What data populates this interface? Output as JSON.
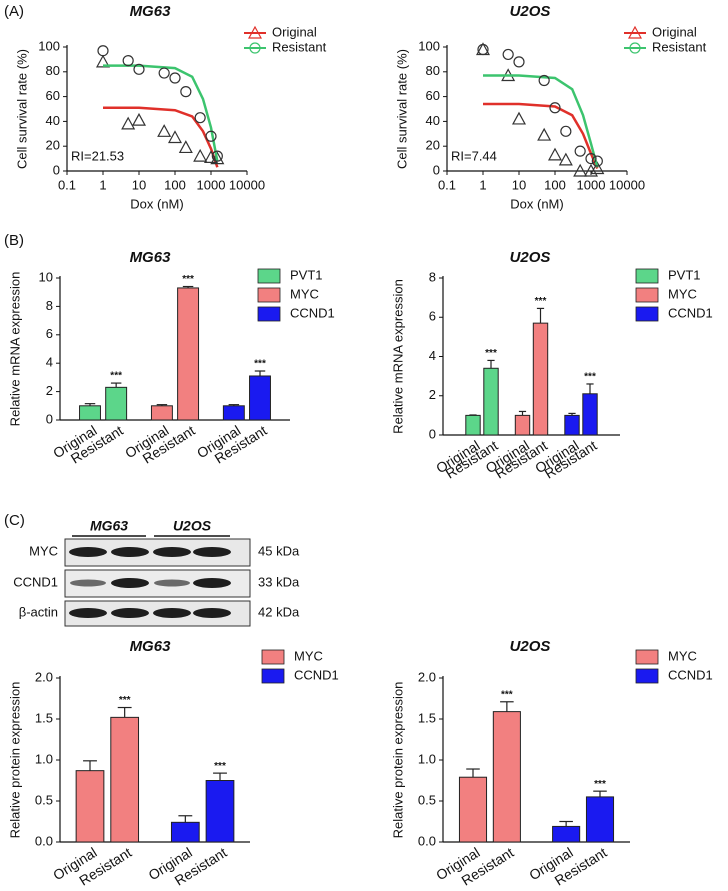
{
  "panel_labels": [
    "(A)",
    "(B)",
    "(C)"
  ],
  "blot": {
    "columns": [
      "MG63",
      "U2OS"
    ],
    "rows": [
      {
        "label": "MYC",
        "size": "45 kDa"
      },
      {
        "label": "CCND1",
        "size": "33 kDa"
      },
      {
        "label": "β-actin",
        "size": "42 kDa"
      }
    ]
  },
  "chart_data": [
    {
      "type": "scatter",
      "title": "MG63",
      "xlabel": "Dox (nM)",
      "ylabel": "Cell survival rate (%)",
      "annotation": "RI=21.53",
      "xscale": "log",
      "xlim": [
        0.1,
        10000
      ],
      "xticks": [
        0.1,
        1,
        10,
        100,
        1000,
        10000
      ],
      "ylim": [
        0,
        100
      ],
      "yticks": [
        0,
        20,
        40,
        60,
        80,
        100
      ],
      "legend": "top-right",
      "point_color": "#333333",
      "series": [
        {
          "name": "Original",
          "color": "#e0302a",
          "marker": "triangle",
          "x": [
            1,
            5,
            10,
            50,
            100,
            200,
            500,
            1000,
            1500
          ],
          "values": [
            88,
            38,
            41,
            32,
            27,
            19,
            12,
            11,
            10
          ],
          "fit": {
            "x": [
              1,
              10,
              100,
              300,
              600,
              1000,
              1500
            ],
            "values": [
              51,
              51,
              49,
              44,
              32,
              18,
              3
            ]
          }
        },
        {
          "name": "Resistant",
          "color": "#3cc46e",
          "marker": "circle",
          "x": [
            1,
            5,
            10,
            50,
            100,
            200,
            500,
            1000,
            1500
          ],
          "values": [
            97,
            89,
            82,
            79,
            75,
            64,
            43,
            28,
            12
          ],
          "fit": {
            "x": [
              1,
              10,
              100,
              300,
              600,
              1000,
              1500
            ],
            "values": [
              85,
              85,
              83,
              76,
              58,
              35,
              8
            ]
          }
        }
      ]
    },
    {
      "type": "scatter",
      "title": "U2OS",
      "xlabel": "Dox (nM)",
      "ylabel": "Cell survival rate (%)",
      "annotation": "RI=7.44",
      "xscale": "log",
      "xlim": [
        0.1,
        10000
      ],
      "xticks": [
        0.1,
        1,
        10,
        100,
        1000,
        10000
      ],
      "ylim": [
        0,
        100
      ],
      "yticks": [
        0,
        20,
        40,
        60,
        80,
        100
      ],
      "legend": "top-right",
      "point_color": "#333333",
      "series": [
        {
          "name": "Original",
          "color": "#e0302a",
          "marker": "triangle",
          "x": [
            1,
            5,
            10,
            50,
            100,
            200,
            500,
            1000,
            1500
          ],
          "values": [
            98,
            77,
            42,
            29,
            13,
            9,
            0,
            0,
            2
          ],
          "fit": {
            "x": [
              1,
              10,
              100,
              300,
              600,
              1000,
              1500
            ],
            "values": [
              54,
              54,
              52,
              45,
              30,
              14,
              2
            ]
          }
        },
        {
          "name": "Resistant",
          "color": "#3cc46e",
          "marker": "circle",
          "x": [
            1,
            5,
            10,
            50,
            100,
            200,
            500,
            1000,
            1500
          ],
          "values": [
            98,
            94,
            88,
            73,
            51,
            32,
            16,
            10,
            8
          ],
          "fit": {
            "x": [
              1,
              10,
              100,
              300,
              600,
              1000,
              1500
            ],
            "values": [
              77,
              77,
              75,
              66,
              45,
              22,
              3
            ]
          }
        }
      ]
    },
    {
      "type": "bar",
      "title": "MG63",
      "ylabel": "Relative mRNA expression",
      "categories": [
        "Original",
        "Resistant",
        "Original",
        "Resistant",
        "Original",
        "Resistant"
      ],
      "ylim": [
        0,
        10
      ],
      "yticks": [
        0,
        2,
        4,
        6,
        8,
        10
      ],
      "legend": "top-right",
      "series": [
        {
          "name": "PVT1",
          "color": "#5cd68a",
          "values": [
            1.0,
            2.3,
            null,
            null,
            null,
            null
          ],
          "errors": [
            0.15,
            0.3,
            null,
            null,
            null,
            null
          ]
        },
        {
          "name": "MYC",
          "color": "#f28080",
          "values": [
            null,
            null,
            1.0,
            9.3,
            null,
            null
          ],
          "errors": [
            null,
            null,
            0.08,
            0.1,
            null,
            null
          ]
        },
        {
          "name": "CCND1",
          "color": "#1a1af0",
          "values": [
            null,
            null,
            null,
            null,
            1.0,
            3.1
          ],
          "errors": [
            null,
            null,
            null,
            null,
            0.08,
            0.35
          ]
        }
      ],
      "significance": [
        null,
        "***",
        null,
        "***",
        null,
        "***"
      ]
    },
    {
      "type": "bar",
      "title": "U2OS",
      "ylabel": "Relative mRNA expression",
      "categories": [
        "Original",
        "Resistant",
        "Original",
        "Resistant",
        "Original",
        "Resistant"
      ],
      "ylim": [
        0,
        8
      ],
      "yticks": [
        0,
        2,
        4,
        6,
        8
      ],
      "legend": "top-right",
      "series": [
        {
          "name": "PVT1",
          "color": "#5cd68a",
          "values": [
            1.0,
            3.4,
            null,
            null,
            null,
            null
          ],
          "errors": [
            0.02,
            0.4,
            null,
            null,
            null,
            null
          ]
        },
        {
          "name": "MYC",
          "color": "#f28080",
          "values": [
            null,
            null,
            1.0,
            5.7,
            null,
            null
          ],
          "errors": [
            null,
            null,
            0.2,
            0.75,
            null,
            null
          ]
        },
        {
          "name": "CCND1",
          "color": "#1a1af0",
          "values": [
            null,
            null,
            null,
            null,
            1.0,
            2.1
          ],
          "errors": [
            null,
            null,
            null,
            null,
            0.1,
            0.5
          ]
        }
      ],
      "significance": [
        null,
        "***",
        null,
        "***",
        null,
        "***"
      ]
    },
    {
      "type": "bar",
      "title": "MG63",
      "ylabel": "Relative protein expression",
      "categories": [
        "Original",
        "Resistant",
        "Original",
        "Resistant"
      ],
      "ylim": [
        0,
        2
      ],
      "yticks": [
        {
          "value": 0,
          "label": "0.0"
        },
        {
          "value": 0.5,
          "label": "0.5"
        },
        {
          "value": 1,
          "label": "1.0"
        },
        {
          "value": 1.5,
          "label": "1.5"
        },
        {
          "value": 2,
          "label": "2.0"
        }
      ],
      "legend": "top-right",
      "series": [
        {
          "name": "MYC",
          "color": "#f28080",
          "values": [
            0.87,
            1.52,
            null,
            null
          ],
          "errors": [
            0.12,
            0.12,
            null,
            null
          ]
        },
        {
          "name": "CCND1",
          "color": "#1a1af0",
          "values": [
            null,
            null,
            0.24,
            0.75
          ],
          "errors": [
            null,
            null,
            0.08,
            0.09
          ]
        }
      ],
      "significance": [
        null,
        "***",
        null,
        "***"
      ]
    },
    {
      "type": "bar",
      "title": "U2OS",
      "ylabel": "Relative protein expression",
      "categories": [
        "Original",
        "Resistant",
        "Original",
        "Resistant"
      ],
      "ylim": [
        0,
        2
      ],
      "yticks": [
        {
          "value": 0,
          "label": "0.0"
        },
        {
          "value": 0.5,
          "label": "0.5"
        },
        {
          "value": 1,
          "label": "1.0"
        },
        {
          "value": 1.5,
          "label": "1.5"
        },
        {
          "value": 2,
          "label": "2.0"
        }
      ],
      "legend": "top-right",
      "series": [
        {
          "name": "MYC",
          "color": "#f28080",
          "values": [
            0.79,
            1.59,
            null,
            null
          ],
          "errors": [
            0.1,
            0.12,
            null,
            null
          ]
        },
        {
          "name": "CCND1",
          "color": "#1a1af0",
          "values": [
            null,
            null,
            0.19,
            0.55
          ],
          "errors": [
            null,
            null,
            0.06,
            0.07
          ]
        }
      ],
      "significance": [
        null,
        "***",
        null,
        "***"
      ]
    }
  ]
}
